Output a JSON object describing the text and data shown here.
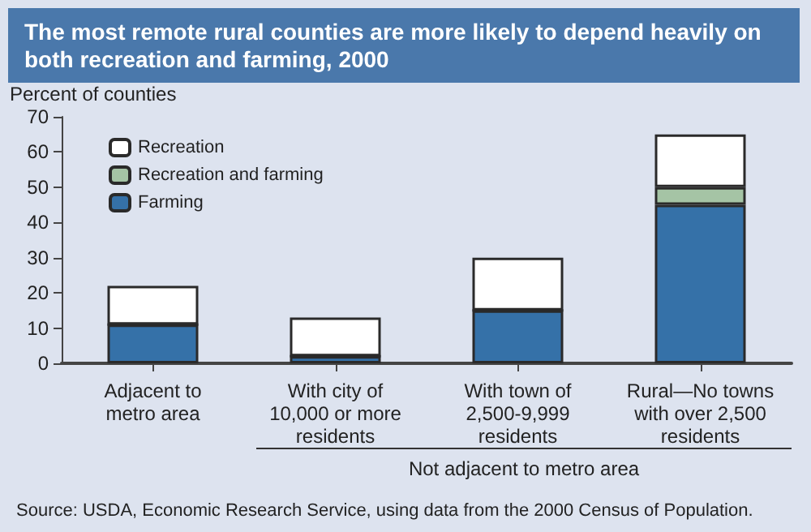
{
  "chart_data": {
    "type": "bar",
    "stacked": true,
    "title": "The most remote rural counties are more likely to depend heavily on both recreation and farming, 2000",
    "ylabel": "Percent of counties",
    "categories": [
      "Adjacent to metro area",
      "With city of 10,000 or more residents",
      "With town of 2,500-9,999 residents",
      "Rural—No towns with over 2,500 residents"
    ],
    "series": [
      {
        "name": "Farming",
        "color": "#3571a8",
        "values": [
          11,
          2,
          15,
          45
        ]
      },
      {
        "name": "Recreation and farming",
        "color": "#a5c4a5",
        "values": [
          0,
          0,
          0,
          5
        ]
      },
      {
        "name": "Recreation",
        "color": "#ffffff",
        "values": [
          11,
          11,
          15,
          15
        ]
      }
    ],
    "ylim": [
      0,
      70
    ],
    "yticks": [
      0,
      10,
      20,
      30,
      40,
      50,
      60,
      70
    ],
    "grid": false,
    "legend": "top left",
    "annotations": [
      "Not adjacent to metro area",
      "Source:  USDA, Economic Research Service, using data from the 2000 Census of Population."
    ]
  }
}
